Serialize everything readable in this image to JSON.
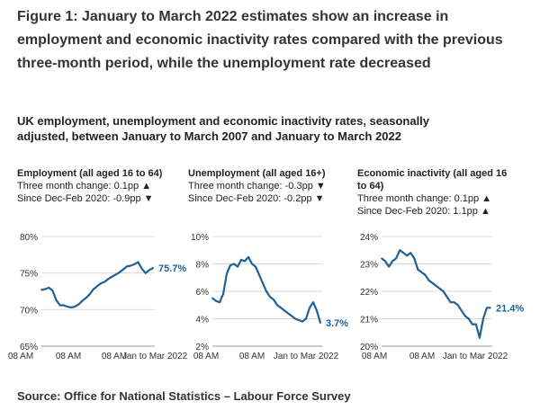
{
  "figure": {
    "title": "Figure 1: January to March 2022 estimates show an increase in employment and economic inactivity rates compared with the previous three-month period, while the unemployment rate decreased",
    "subtitle": "UK employment, unemployment and economic inactivity rates, seasonally adjusted, between January to March 2007 and January to March 2022",
    "source": "Source: Office for National Statistics – Labour Force Survey"
  },
  "panels": [
    {
      "title": "Employment (all aged 16 to 64)",
      "change_line": "Three month change: 0.1pp ▲",
      "since_line": "Since Dec-Feb 2020: -0.9pp ▼",
      "end_label": "75.7%"
    },
    {
      "title": "Unemployment (all aged 16+)",
      "change_line": "Three month change: -0.3pp ▼",
      "since_line": "Since Dec-Feb 2020: -0.2pp ▼",
      "end_label": "3.7%"
    },
    {
      "title": "Economic inactivity (all aged 16 to 64)",
      "change_line": "Three month change: 0.1pp ▲",
      "since_line": "Since Dec-Feb 2020: 1.1pp ▲",
      "end_label": "21.4%"
    }
  ],
  "colors": {
    "line": "#206095",
    "grid": "#d9d9d9",
    "axis": "#999999",
    "text": "#333333"
  },
  "chart_data": [
    {
      "type": "line",
      "title": "Employment (all aged 16 to 64)",
      "ylim": [
        65,
        80
      ],
      "yticks": [
        65,
        70,
        75,
        80
      ],
      "ytick_labels": [
        "65%",
        "70%",
        "75%",
        "80%"
      ],
      "xtick_labels": [
        "08 AM",
        "08 AM",
        "08 AM",
        "Jan to Mar 2022"
      ],
      "x": [
        2007,
        2007.5,
        2008,
        2008.5,
        2009,
        2009.5,
        2010,
        2010.5,
        2011,
        2011.5,
        2012,
        2012.5,
        2013,
        2013.5,
        2014,
        2014.5,
        2015,
        2015.5,
        2016,
        2016.5,
        2017,
        2017.5,
        2018,
        2018.5,
        2019,
        2019.5,
        2020,
        2020.5,
        2021,
        2021.5,
        2022
      ],
      "series": [
        {
          "name": "Employment rate",
          "values": [
            72.7,
            72.8,
            73.0,
            72.6,
            71.3,
            70.6,
            70.6,
            70.4,
            70.3,
            70.4,
            70.7,
            71.2,
            71.6,
            72.1,
            72.8,
            73.2,
            73.6,
            73.8,
            74.2,
            74.5,
            74.8,
            75.1,
            75.5,
            75.9,
            76.0,
            76.2,
            76.5,
            75.6,
            75.0,
            75.4,
            75.7
          ]
        }
      ],
      "end_label": "75.7%"
    },
    {
      "type": "line",
      "title": "Unemployment (all aged 16+)",
      "ylim": [
        2,
        10
      ],
      "yticks": [
        2,
        4,
        6,
        8,
        10
      ],
      "ytick_labels": [
        "2%",
        "4%",
        "6%",
        "8%",
        "10%"
      ],
      "xtick_labels": [
        "08 AM",
        "08 AM",
        "Jan to Mar 2022"
      ],
      "x": [
        2007,
        2007.5,
        2008,
        2008.5,
        2009,
        2009.5,
        2010,
        2010.5,
        2011,
        2011.5,
        2012,
        2012.5,
        2013,
        2013.5,
        2014,
        2014.5,
        2015,
        2015.5,
        2016,
        2016.5,
        2017,
        2017.5,
        2018,
        2018.5,
        2019,
        2019.5,
        2020,
        2020.5,
        2021,
        2021.5,
        2022
      ],
      "series": [
        {
          "name": "Unemployment rate",
          "values": [
            5.5,
            5.3,
            5.2,
            5.8,
            7.3,
            7.9,
            8.0,
            7.8,
            8.3,
            8.2,
            8.5,
            8.0,
            7.8,
            7.2,
            6.6,
            6.0,
            5.6,
            5.4,
            5.0,
            4.8,
            4.6,
            4.4,
            4.2,
            4.0,
            3.9,
            3.8,
            4.0,
            4.8,
            5.2,
            4.6,
            3.7
          ]
        }
      ],
      "end_label": "3.7%"
    },
    {
      "type": "line",
      "title": "Economic inactivity (all aged 16 to 64)",
      "ylim": [
        20,
        24
      ],
      "yticks": [
        20,
        21,
        22,
        23,
        24
      ],
      "ytick_labels": [
        "20%",
        "21%",
        "22%",
        "23%",
        "24%"
      ],
      "xtick_labels": [
        "08 AM",
        "08 AM",
        "Jan to Mar 2022"
      ],
      "x": [
        2007,
        2007.5,
        2008,
        2008.5,
        2009,
        2009.5,
        2010,
        2010.5,
        2011,
        2011.5,
        2012,
        2012.5,
        2013,
        2013.5,
        2014,
        2014.5,
        2015,
        2015.5,
        2016,
        2016.5,
        2017,
        2017.5,
        2018,
        2018.5,
        2019,
        2019.5,
        2020,
        2020.5,
        2021,
        2021.5,
        2022
      ],
      "series": [
        {
          "name": "Economic inactivity rate",
          "values": [
            23.2,
            23.1,
            22.9,
            23.1,
            23.2,
            23.5,
            23.4,
            23.3,
            23.4,
            23.2,
            22.8,
            22.7,
            22.6,
            22.4,
            22.3,
            22.2,
            22.1,
            22.0,
            21.8,
            21.6,
            21.6,
            21.5,
            21.3,
            21.1,
            21.0,
            20.8,
            20.8,
            20.3,
            21.0,
            21.4,
            21.4
          ]
        }
      ],
      "end_label": "21.4%"
    }
  ]
}
